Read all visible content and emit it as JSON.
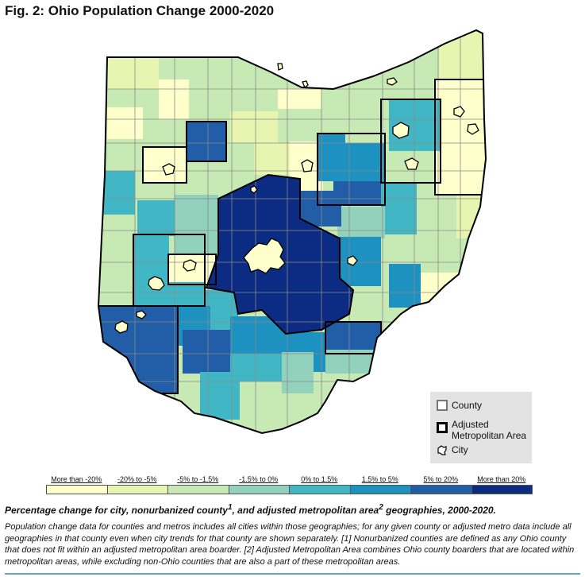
{
  "figure": {
    "title": "Fig. 2: Ohio Population Change 2000-2020",
    "caption_main": "Percentage change for city, nonurbanized county",
    "caption_sup1": "1",
    "caption_mid": ", and adjusted metropolitan area",
    "caption_sup2": "2",
    "caption_end": " geographies, 2000-2020.",
    "note": "Population change data for counties and metros includes all cities within those geographies; for any given county or adjusted metro data include all geographies in that county even when city trends for that county are shown separately. [1] Nonurbanized counties are defined as any Ohio county that does not fit within an adjusted metropolitan area boarder. [2] Adjusted Metropolitan Area combines Ohio county boarders that are located within metropolitan areas, while excluding non-Ohio counties that are also a part of these metropolitan areas."
  },
  "legend": {
    "county": "County",
    "metro": "Adjusted Metropolitan Area",
    "city": "City"
  },
  "scale": [
    {
      "label": "More than -20%",
      "color": "#ffffcc"
    },
    {
      "label": "-20% to -5%",
      "color": "#e8f5b0"
    },
    {
      "label": "-5% to -1.5%",
      "color": "#c7e9b4"
    },
    {
      "label": "-1.5% to 0%",
      "color": "#92d1bb"
    },
    {
      "label": "0% to 1.5%",
      "color": "#41b6c4"
    },
    {
      "label": "1.5% to 5%",
      "color": "#1d91c0"
    },
    {
      "label": "5% to 20%",
      "color": "#225ea8"
    },
    {
      "label": "More than 20%",
      "color": "#0c2c84"
    }
  ]
}
